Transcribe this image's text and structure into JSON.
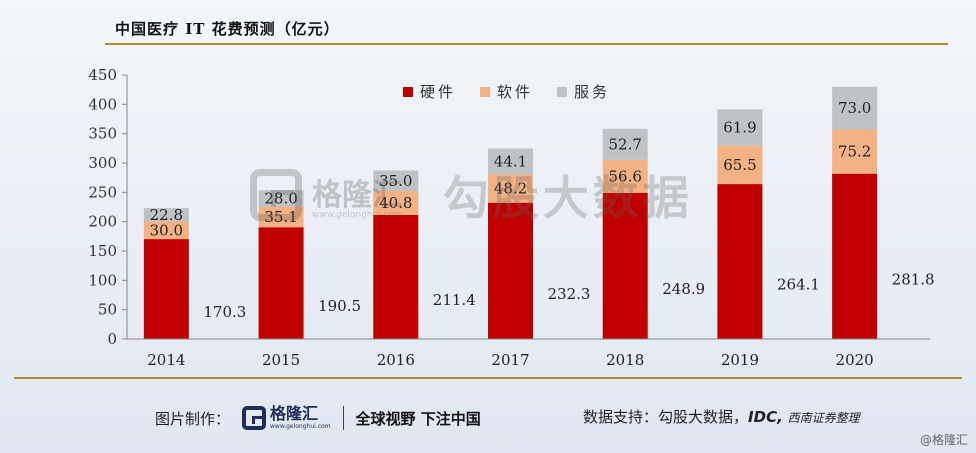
{
  "header": {
    "title": "中国医疗 IT 花费预测（亿元）"
  },
  "watermark": {
    "brand_cn": "格隆汇",
    "brand_url": "www.gelonghui.com",
    "source_cn": "勾股大数据"
  },
  "footer": {
    "made_by_label": "图片制作：",
    "logo_cn": "格隆汇",
    "logo_url": "www.gelonghui.com",
    "slogan": "全球视野 下注中国",
    "data_support_label": "数据支持：",
    "source_1": "勾股大数据，",
    "source_2": "IDC,",
    "source_3": "西南证券整理",
    "corner_mark": "@格隆汇"
  },
  "chart_data": {
    "type": "bar",
    "stacked": true,
    "title": "中国医疗 IT 花费预测（亿元）",
    "categories": [
      "2014",
      "2015",
      "2016",
      "2017",
      "2018",
      "2019",
      "2020"
    ],
    "series": [
      {
        "name": "硬件",
        "color": "#c00000",
        "values": [
          170.3,
          190.5,
          211.4,
          232.3,
          248.9,
          264.1,
          281.8
        ]
      },
      {
        "name": "软件",
        "color": "#f4b183",
        "values": [
          30.0,
          35.1,
          40.8,
          48.2,
          56.6,
          65.5,
          75.2
        ]
      },
      {
        "name": "服务",
        "color": "#bfc2c7",
        "values": [
          22.8,
          28.0,
          35.0,
          44.1,
          52.7,
          61.9,
          73.0
        ]
      }
    ],
    "yticks": [
      0,
      50,
      100,
      150,
      200,
      250,
      300,
      350,
      400,
      450
    ],
    "ylim": [
      0,
      450
    ],
    "legend_position": "top",
    "grid": false
  }
}
